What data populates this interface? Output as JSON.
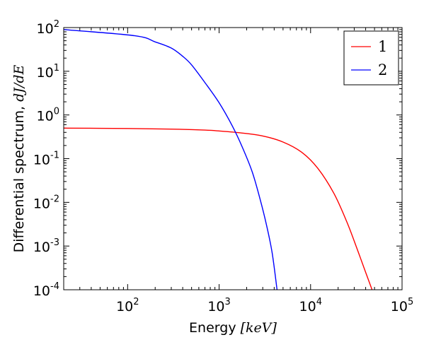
{
  "chart_data": {
    "type": "line",
    "xscale": "log",
    "yscale": "log",
    "xlim": [
      20,
      100000
    ],
    "ylim": [
      0.0001,
      100
    ],
    "xlabel": "Energy",
    "xlabel_math": "[keV]",
    "ylabel": "Differential spectrum,",
    "ylabel_math": "dJ/dE",
    "xticks": [
      {
        "value": 100,
        "base": "10",
        "exp": "2"
      },
      {
        "value": 1000,
        "base": "10",
        "exp": "3"
      },
      {
        "value": 10000,
        "base": "10",
        "exp": "4"
      },
      {
        "value": 100000,
        "base": "10",
        "exp": "5"
      }
    ],
    "yticks": [
      {
        "value": 0.0001,
        "base": "10",
        "exp": "-4"
      },
      {
        "value": 0.001,
        "base": "10",
        "exp": "-3"
      },
      {
        "value": 0.01,
        "base": "10",
        "exp": "-2"
      },
      {
        "value": 0.1,
        "base": "10",
        "exp": "-1"
      },
      {
        "value": 1,
        "base": "10",
        "exp": "0"
      },
      {
        "value": 10,
        "base": "10",
        "exp": "1"
      },
      {
        "value": 100,
        "base": "10",
        "exp": "2"
      }
    ],
    "legend_position": "top-right",
    "series": [
      {
        "name": "1",
        "color": "#ff0000",
        "x": [
          20,
          100,
          300,
          700,
          1000,
          1700,
          3000,
          5000,
          8000,
          12000,
          18000,
          25000,
          32000,
          40000,
          47000
        ],
        "y": [
          0.5,
          0.49,
          0.475,
          0.45,
          0.43,
          0.39,
          0.33,
          0.24,
          0.14,
          0.06,
          0.016,
          0.0035,
          0.0009,
          0.00025,
          0.0001
        ]
      },
      {
        "name": "2",
        "color": "#0000ff",
        "x": [
          20,
          120,
          200,
          300,
          400,
          500,
          700,
          1000,
          1400,
          1800,
          2300,
          2800,
          3300,
          3800,
          4300
        ],
        "y": [
          90,
          65,
          47,
          34,
          22,
          14,
          5.5,
          1.9,
          0.55,
          0.18,
          0.05,
          0.012,
          0.003,
          0.0007,
          0.0001
        ]
      }
    ]
  }
}
